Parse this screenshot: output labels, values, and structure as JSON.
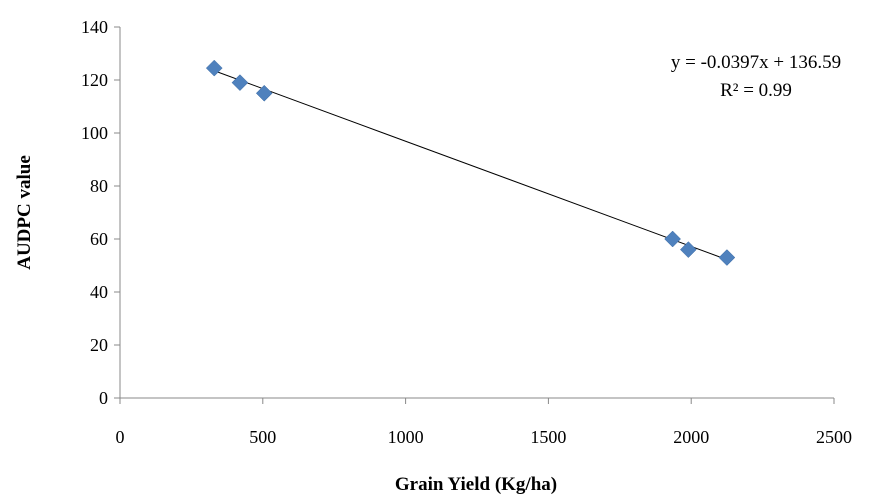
{
  "chart_data": {
    "type": "scatter",
    "title": "",
    "xlabel": "Grain Yield (Kg/ha)",
    "ylabel": "AUDPC value",
    "xlim": [
      0,
      2500
    ],
    "ylim": [
      0,
      140
    ],
    "x_ticks": [
      "0",
      "500",
      "1000",
      "1500",
      "2000",
      "2500"
    ],
    "y_ticks": [
      "0",
      "20",
      "40",
      "60",
      "80",
      "100",
      "120",
      "140"
    ],
    "grid": false,
    "legend": "none",
    "marker": "diamond",
    "marker_color": "#4f81bd",
    "series": [
      {
        "points": [
          {
            "x": 330,
            "y": 124.5
          },
          {
            "x": 420,
            "y": 119
          },
          {
            "x": 505,
            "y": 115
          },
          {
            "x": 1935,
            "y": 60
          },
          {
            "x": 1990,
            "y": 56
          },
          {
            "x": 2125,
            "y": 53
          }
        ]
      }
    ],
    "trendline": {
      "slope": -0.0397,
      "intercept": 136.59,
      "x_range": [
        330,
        2125
      ],
      "color": "#000000"
    },
    "annotations": {
      "equation": "y = -0.0397x + 136.59",
      "r_squared": "R² = 0.99"
    }
  }
}
